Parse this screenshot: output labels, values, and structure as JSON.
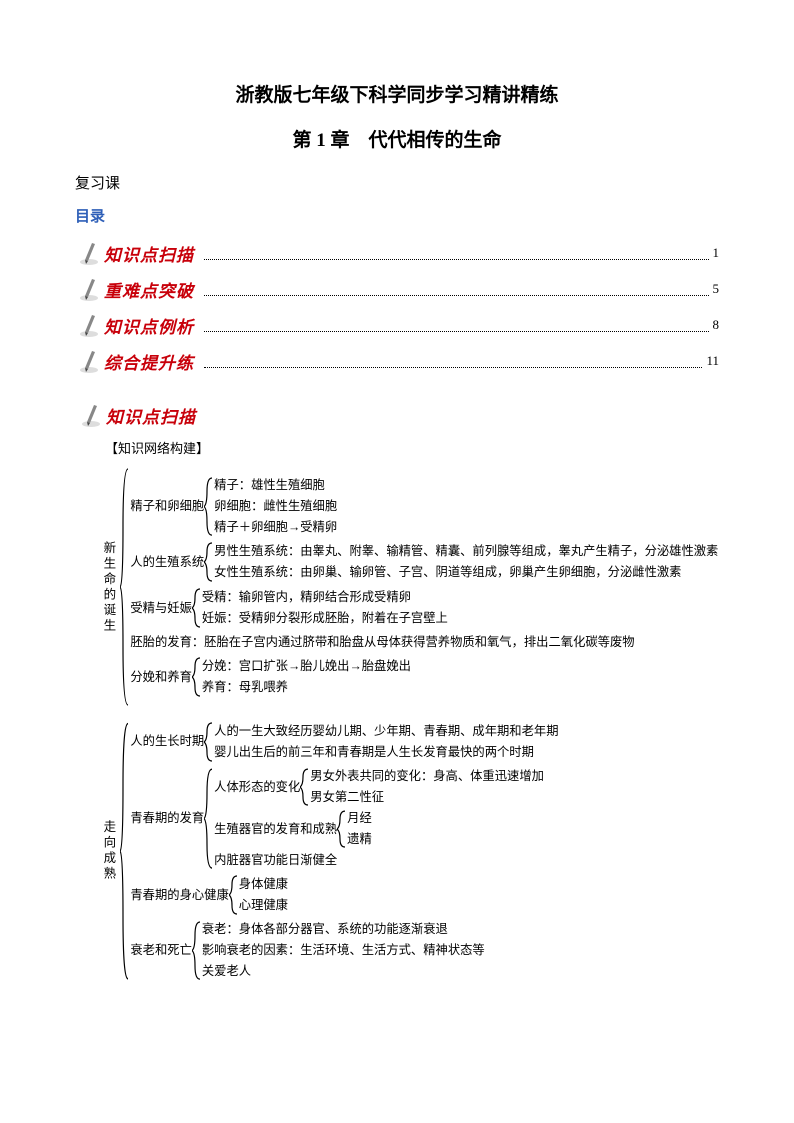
{
  "header": {
    "title": "浙教版七年级下科学同步学习精讲精练",
    "chapter": "第 1 章　代代相传的生命",
    "lesson": "复习课",
    "toc": "目录"
  },
  "toc": [
    {
      "label": "知识点扫描",
      "page": "1"
    },
    {
      "label": "重难点突破",
      "page": "5"
    },
    {
      "label": "知识点例析",
      "page": "8"
    },
    {
      "label": "综合提升练",
      "page": "11"
    }
  ],
  "section": {
    "badge": "知识点扫描",
    "subhead": "【知识网络构建】"
  },
  "tree1": {
    "root": "新生命的诞生",
    "rows": [
      {
        "lbl": "精子和卵细胞",
        "items": [
          "精子：雄性生殖细胞",
          "卵细胞：雌性生殖细胞",
          "精子＋卵细胞→受精卵"
        ]
      },
      {
        "lbl": "人的生殖系统",
        "items": [
          "男性生殖系统：由睾丸、附睾、输精管、精囊、前列腺等组成，睾丸产生精子，分泌雄性激素",
          "女性生殖系统：由卵巢、输卵管、子宫、阴道等组成，卵巢产生卵细胞，分泌雌性激素"
        ]
      },
      {
        "lbl": "受精与妊娠",
        "items": [
          "受精：输卵管内，精卵结合形成受精卵",
          "妊娠：受精卵分裂形成胚胎，附着在子宫壁上"
        ]
      },
      {
        "lbl": "胚胎的发育：胚胎在子宫内通过脐带和胎盘从母体获得营养物质和氧气，排出二氧化碳等废物",
        "items": []
      },
      {
        "lbl": "分娩和养育",
        "items": [
          "分娩：宫口扩张→胎儿娩出→胎盘娩出",
          "养育：母乳喂养"
        ]
      }
    ]
  },
  "tree2": {
    "root": "走向成熟",
    "rows": [
      {
        "lbl": "人的生长时期",
        "items": [
          "人的一生大致经历婴幼儿期、少年期、青春期、成年期和老年期",
          "婴儿出生后的前三年和青春期是人生长发育最快的两个时期"
        ]
      },
      {
        "lbl": "青春期的发育",
        "complex": true
      },
      {
        "lbl": "青春期的身心健康",
        "items": [
          "身体健康",
          "心理健康"
        ]
      },
      {
        "lbl": "衰老和死亡",
        "items": [
          "衰老：身体各部分器官、系统的功能逐渐衰退",
          "影响衰老的因素：生活环境、生活方式、精神状态等",
          "关爱老人"
        ]
      }
    ]
  },
  "puberty": {
    "r1": {
      "lbl": "人体形态的变化",
      "items": [
        "男女外表共同的变化：身高、体重迅速增加",
        "男女第二性征"
      ]
    },
    "r2": {
      "lbl": "生殖器官的发育和成熟",
      "items": [
        "月经",
        "遗精"
      ]
    },
    "r3": "内脏器官功能日渐健全"
  },
  "colors": {
    "badge": "#c8000a",
    "badge_bg": "#ffffff",
    "dir": "#2e5fb8",
    "pen_gray": "#888888"
  }
}
